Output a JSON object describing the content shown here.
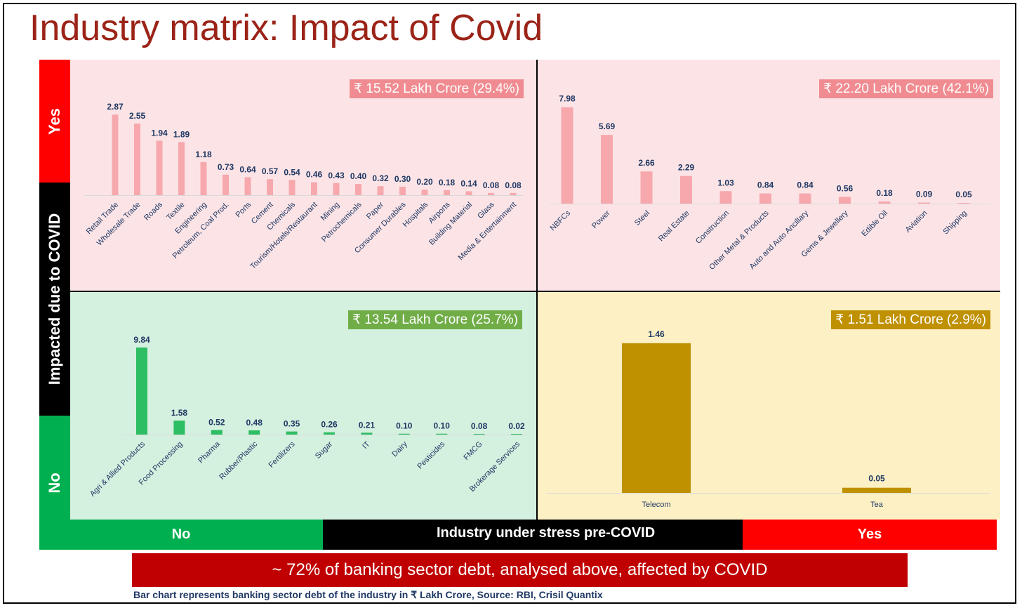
{
  "title": "Industry matrix: Impact of Covid",
  "y_axis": {
    "title": "Impacted due to COVID",
    "yes": "Yes",
    "no": "No"
  },
  "x_axis": {
    "title": "Industry under stress pre-COVID",
    "no": "No",
    "yes": "Yes"
  },
  "banner": "~ 72% of banking sector debt, analysed above, affected by COVID",
  "footnote": "Bar chart represents banking sector debt of the industry in ₹ Lakh Crore, Source: RBI, Crisil Quantix",
  "colors": {
    "title": "#9b2317",
    "yes_red": "#ff0000",
    "no_green": "#00b050",
    "axis_black": "#000000",
    "banner": "#c00000",
    "q_pink_bg": "#fce4e6",
    "q_green_bg": "#d4f0df",
    "q_yellow_bg": "#fdf0c4",
    "bar_pink": "#f7a8ad",
    "bar_green": "#2dbd62",
    "bar_gold": "#bf9000",
    "badge_pink": "#f08c91",
    "badge_green": "#70ad47",
    "badge_gold": "#bf9000"
  },
  "chart_data": [
    {
      "type": "bar",
      "quadrant": "top-left",
      "badge": "₹ 15.52 Lakh Crore (29.4%)",
      "categories": [
        "Retail Trade",
        "Wholesale Trade",
        "Roads",
        "Textile",
        "Engineering",
        "Petroleum, Coal Prod.",
        "Ports",
        "Cement",
        "Chemicals",
        "Tourism/Hotels/Restaurant",
        "Mining",
        "Petrochemicals",
        "Paper",
        "Consumer Durables",
        "Hospitals",
        "Airports",
        "Building Material",
        "Glass",
        "Media & Entertainment"
      ],
      "values": [
        2.87,
        2.55,
        1.94,
        1.89,
        1.18,
        0.73,
        0.64,
        0.57,
        0.54,
        0.46,
        0.43,
        0.4,
        0.32,
        0.3,
        0.2,
        0.18,
        0.14,
        0.08,
        0.08
      ],
      "labels": [
        "2.87",
        "2.55",
        "1.94",
        "1.89",
        "1.18",
        "0.73",
        "0.64",
        "0.57",
        "0.54",
        "0.46",
        "0.43",
        "0.40",
        "0.32",
        "0.30",
        "0.20",
        "0.18",
        "0.14",
        "0.08",
        "0.08"
      ]
    },
    {
      "type": "bar",
      "quadrant": "top-right",
      "badge": "₹ 22.20 Lakh Crore (42.1%)",
      "categories": [
        "NBFCs",
        "Power",
        "Steel",
        "Real Estate",
        "Construction",
        "Other Metal & Products",
        "Auto and Auto Ancillary",
        "Gems & Jewellery",
        "Edible Oil",
        "Aviation",
        "Shipping"
      ],
      "values": [
        7.98,
        5.69,
        2.66,
        2.29,
        1.03,
        0.84,
        0.84,
        0.56,
        0.18,
        0.09,
        0.05
      ],
      "labels": [
        "7.98",
        "5.69",
        "2.66",
        "2.29",
        "1.03",
        "0.84",
        "0.84",
        "0.56",
        "0.18",
        "0.09",
        "0.05"
      ]
    },
    {
      "type": "bar",
      "quadrant": "bottom-left",
      "badge": "₹ 13.54 Lakh Crore (25.7%)",
      "categories": [
        "Agri & Allied Products",
        "Food Processing",
        "Pharma",
        "Rubber/Plastic",
        "Fertilizers",
        "Sugar",
        "IT",
        "Dairy",
        "Pesticides",
        "FMCG",
        "Brokerage Services"
      ],
      "values": [
        9.84,
        1.58,
        0.52,
        0.48,
        0.35,
        0.26,
        0.21,
        0.1,
        0.1,
        0.08,
        0.02
      ],
      "labels": [
        "9.84",
        "1.58",
        "0.52",
        "0.48",
        "0.35",
        "0.26",
        "0.21",
        "0.10",
        "0.10",
        "0.08",
        "0.02"
      ]
    },
    {
      "type": "bar",
      "quadrant": "bottom-right",
      "badge": "₹ 1.51 Lakh Crore (2.9%)",
      "categories": [
        "Telecom",
        "Tea"
      ],
      "values": [
        1.46,
        0.05
      ],
      "labels": [
        "1.46",
        "0.05"
      ]
    }
  ]
}
